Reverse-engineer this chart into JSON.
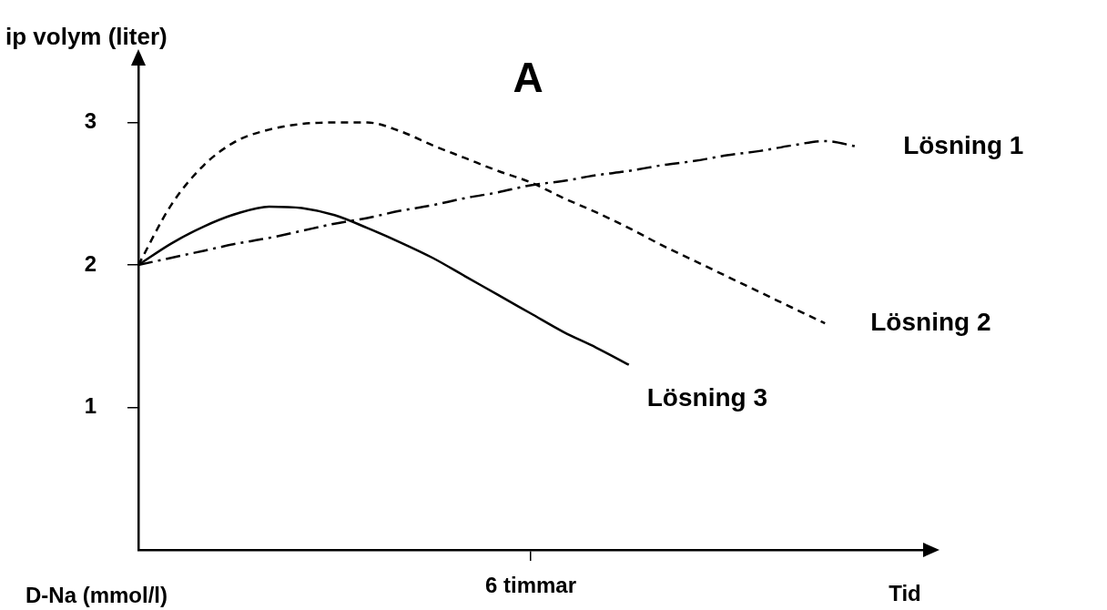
{
  "chart_data": {
    "type": "line",
    "title": "A",
    "ylabel": "ip volym (liter)",
    "xlabel": "Tid",
    "annotations": [
      "D-Na (mmol/l)"
    ],
    "categories": [
      null,
      null,
      null,
      null,
      null,
      null,
      null,
      null,
      null,
      null,
      null,
      null,
      "6 timmar",
      null,
      null,
      null,
      null,
      null,
      null,
      null,
      null,
      null,
      null,
      null,
      null
    ],
    "ylim": [
      0,
      3.4
    ],
    "yticks": [
      1,
      2,
      3
    ],
    "grid": false,
    "legend": false,
    "marker": "none",
    "series": [
      {
        "name": "Lösning 1",
        "color": "#000000",
        "line_style": "dashdot",
        "values": [
          2.0,
          2.05,
          2.1,
          2.15,
          2.19,
          2.24,
          2.29,
          2.33,
          2.38,
          2.42,
          2.47,
          2.51,
          2.56,
          2.59,
          2.63,
          2.66,
          2.7,
          2.73,
          2.77,
          2.8,
          2.84,
          2.87,
          2.83,
          null,
          null
        ]
      },
      {
        "name": "Lösning 2",
        "color": "#000000",
        "line_style": "dashed",
        "values": [
          2.0,
          2.42,
          2.7,
          2.87,
          2.95,
          2.99,
          3.0,
          3.0,
          2.94,
          2.84,
          2.75,
          2.66,
          2.58,
          2.47,
          2.37,
          2.26,
          2.14,
          2.03,
          1.92,
          1.81,
          1.7,
          1.59,
          null,
          null,
          null
        ]
      },
      {
        "name": "Lösning 3",
        "color": "#000000",
        "line_style": "solid",
        "values": [
          2.0,
          2.15,
          2.27,
          2.36,
          2.41,
          2.4,
          2.35,
          2.26,
          2.16,
          2.05,
          1.92,
          1.79,
          1.66,
          1.53,
          1.42,
          1.3,
          null,
          null,
          null,
          null,
          null,
          null,
          null,
          null,
          null
        ]
      }
    ]
  }
}
